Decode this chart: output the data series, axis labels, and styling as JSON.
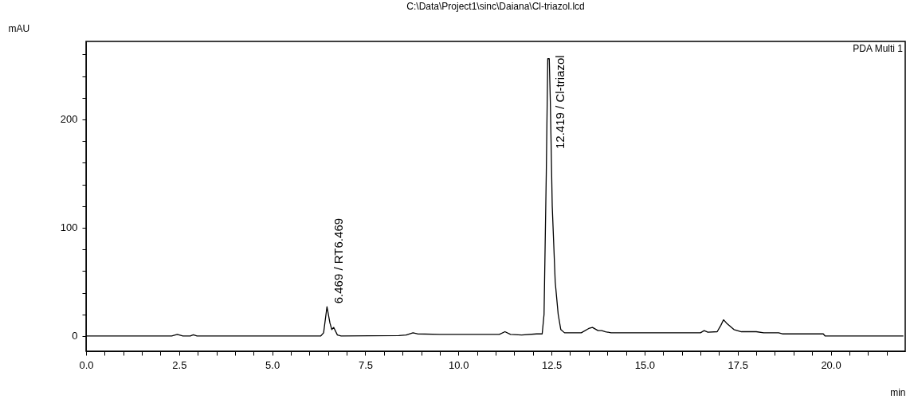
{
  "chart_data": {
    "type": "line",
    "title": "C:\\Data\\Project1\\sinc\\Daiana\\Cl-triazol.lcd",
    "xlabel": "min",
    "ylabel": "mAU",
    "annotations": [
      {
        "text": "6.469 / RT6.469",
        "x": 6.469,
        "y": 27
      },
      {
        "text": "12.419 / Cl-triazol",
        "x": 12.419,
        "y": 256
      },
      "PDA Multi 1"
    ],
    "series": [
      {
        "color": "#000000",
        "x": [
          0,
          2.3,
          2.45,
          2.6,
          2.8,
          2.88,
          2.98,
          6.3,
          6.38,
          6.47,
          6.55,
          6.6,
          6.65,
          6.75,
          6.85,
          8.4,
          8.6,
          8.78,
          8.9,
          9.5,
          11.1,
          11.25,
          11.4,
          11.7,
          12.1,
          12.25,
          12.3,
          12.36,
          12.4,
          12.44,
          12.47,
          12.52,
          12.6,
          12.68,
          12.75,
          12.85,
          13.0,
          13.3,
          13.5,
          13.6,
          13.75,
          13.85,
          13.95,
          14.1,
          16.5,
          16.6,
          16.7,
          16.95,
          17.05,
          17.12,
          17.2,
          17.4,
          17.6,
          18.0,
          18.2,
          18.6,
          18.7,
          19.8,
          19.85,
          21.95
        ],
        "values": [
          0,
          0,
          1.5,
          0,
          0,
          1.2,
          0,
          0,
          3,
          27,
          12,
          6,
          8,
          1,
          0,
          0.5,
          1,
          3,
          2,
          1.5,
          1.5,
          4,
          1.5,
          1,
          2,
          2,
          20,
          150,
          256,
          256,
          215,
          120,
          50,
          20,
          6,
          3,
          3,
          3,
          7,
          8,
          5,
          5,
          4,
          3,
          3,
          5,
          3.5,
          4,
          10,
          15,
          12,
          6,
          4,
          4,
          3,
          3,
          2,
          2,
          0,
          0
        ]
      }
    ],
    "xlim": [
      0,
      22
    ],
    "ylim": [
      -14,
      272
    ],
    "xticks": [
      {
        "value": 0,
        "label": "0.0"
      },
      {
        "value": 0.5,
        "label": null
      },
      {
        "value": 1,
        "label": null
      },
      {
        "value": 1.5,
        "label": null
      },
      {
        "value": 2,
        "label": null
      },
      2.5,
      {
        "value": 3,
        "label": null
      },
      {
        "value": 3.5,
        "label": null
      },
      {
        "value": 4,
        "label": null
      },
      {
        "value": 4.5,
        "label": null
      },
      {
        "value": 5,
        "label": "5.0"
      },
      {
        "value": 5.5,
        "label": null
      },
      {
        "value": 6,
        "label": null
      },
      {
        "value": 6.5,
        "label": null
      },
      {
        "value": 7,
        "label": null
      },
      7.5,
      {
        "value": 8,
        "label": null
      },
      {
        "value": 8.5,
        "label": null
      },
      {
        "value": 9,
        "label": null
      },
      {
        "value": 9.5,
        "label": null
      },
      {
        "value": 10,
        "label": "10.0"
      },
      {
        "value": 10.5,
        "label": null
      },
      {
        "value": 11,
        "label": null
      },
      {
        "value": 11.5,
        "label": null
      },
      {
        "value": 12,
        "label": null
      },
      12.5,
      {
        "value": 13,
        "label": null
      },
      {
        "value": 13.5,
        "label": null
      },
      {
        "value": 14,
        "label": null
      },
      {
        "value": 14.5,
        "label": null
      },
      {
        "value": 15,
        "label": "15.0"
      },
      {
        "value": 15.5,
        "label": null
      },
      {
        "value": 16,
        "label": null
      },
      {
        "value": 16.5,
        "label": null
      },
      {
        "value": 17,
        "label": null
      },
      17.5,
      {
        "value": 18,
        "label": null
      },
      {
        "value": 18.5,
        "label": null
      },
      {
        "value": 19,
        "label": null
      },
      {
        "value": 19.5,
        "label": null
      },
      {
        "value": 20,
        "label": "20.0"
      },
      {
        "value": 20.5,
        "label": null
      },
      {
        "value": 21,
        "label": null
      },
      {
        "value": 21.5,
        "label": null
      }
    ],
    "yticks": [
      0,
      {
        "value": 20,
        "label": null
      },
      {
        "value": 40,
        "label": null
      },
      {
        "value": 60,
        "label": null
      },
      {
        "value": 80,
        "label": null
      },
      100,
      {
        "value": 120,
        "label": null
      },
      {
        "value": 140,
        "label": null
      },
      {
        "value": 160,
        "label": null
      },
      {
        "value": 180,
        "label": null
      },
      200,
      {
        "value": 220,
        "label": null
      },
      {
        "value": 240,
        "label": null
      },
      {
        "value": 260,
        "label": null
      }
    ],
    "grid": false
  }
}
